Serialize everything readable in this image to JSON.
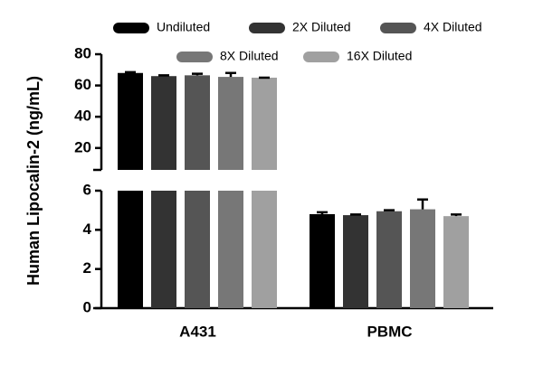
{
  "chart_data": {
    "type": "bar",
    "y_label": "Human Lipocalin-2 (ng/mL)",
    "categories": [
      "A431",
      "PBMC"
    ],
    "series": [
      {
        "name": "Undiluted",
        "color": "#000000",
        "values": [
          68,
          4.8
        ],
        "errors": [
          0.5,
          0.1
        ]
      },
      {
        "name": "2X Diluted",
        "color": "#333333",
        "values": [
          66,
          4.75
        ],
        "errors": [
          0.5,
          0.03
        ]
      },
      {
        "name": "4X Diluted",
        "color": "#555555",
        "values": [
          66.5,
          4.95
        ],
        "errors": [
          1,
          0.05
        ]
      },
      {
        "name": "8X Diluted",
        "color": "#777777",
        "values": [
          65.5,
          5.05
        ],
        "errors": [
          2.5,
          0.5
        ]
      },
      {
        "name": "16X Diluted",
        "color": "#a0a0a0",
        "values": [
          65,
          4.7
        ],
        "errors": [
          0,
          0.08
        ]
      }
    ],
    "axis_segments": [
      {
        "ylim": [
          0,
          6
        ],
        "yticks": [
          0,
          2,
          4,
          6
        ]
      },
      {
        "ylim": [
          6,
          80
        ],
        "yticks": [
          20,
          40,
          60,
          80
        ]
      }
    ]
  }
}
